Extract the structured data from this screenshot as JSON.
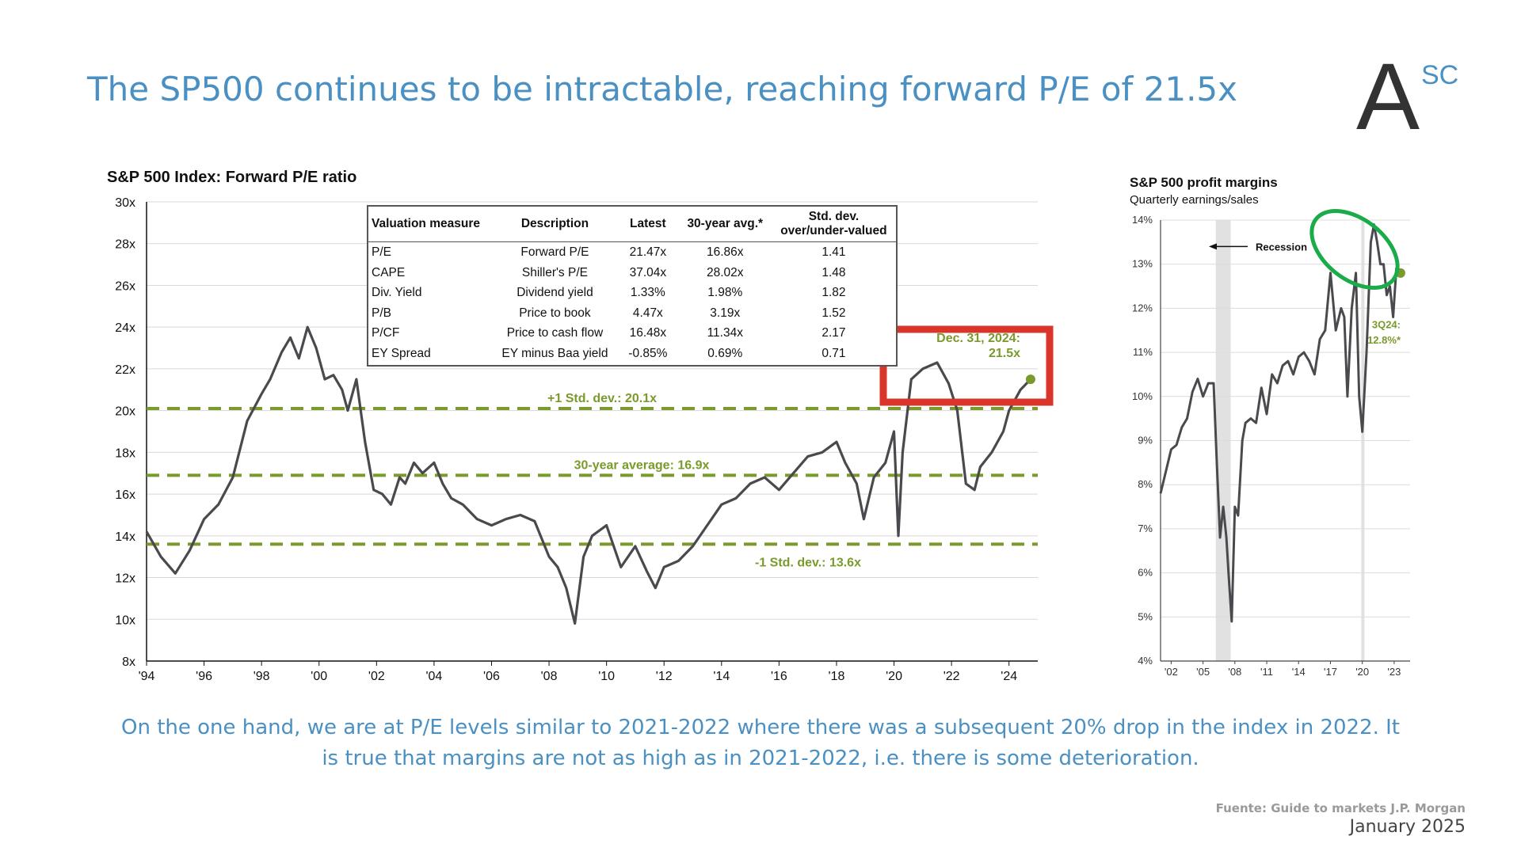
{
  "title": "The SP500 continues to be intractable, reaching  forward P/E of 21.5x",
  "logo": {
    "main": "A",
    "super": "SC"
  },
  "caption": "On the one hand, we are at P/E levels similar to 2021-2022 where there was a subsequent 20% drop in the index in 2022. It is true that margins are not as high as in 2021-2022, i.e. there is some deterioration.",
  "source": "Fuente: Guide to markets J.P. Morgan",
  "date": "January 2025",
  "colors": {
    "title_blue": "#4a90c2",
    "line_gray": "#4a4a4e",
    "ref_green": "#7a9a2c",
    "highlight_red": "#d9352a",
    "circle_green": "#1aab4a"
  },
  "table": {
    "headers": [
      "Valuation measure",
      "Description",
      "Latest",
      "30-year avg.*",
      "Std. dev. over/under-valued"
    ],
    "rows": [
      [
        "P/E",
        "Forward P/E",
        "21.47x",
        "16.86x",
        "1.41"
      ],
      [
        "CAPE",
        "Shiller's P/E",
        "37.04x",
        "28.02x",
        "1.48"
      ],
      [
        "Div. Yield",
        "Dividend yield",
        "1.33%",
        "1.98%",
        "1.82"
      ],
      [
        "P/B",
        "Price to book",
        "4.47x",
        "3.19x",
        "1.52"
      ],
      [
        "P/CF",
        "Price to cash flow",
        "16.48x",
        "11.34x",
        "2.17"
      ],
      [
        "EY Spread",
        "EY minus Baa yield",
        "-0.85%",
        "0.69%",
        "0.71"
      ]
    ]
  },
  "chart_data": [
    {
      "type": "line",
      "title": "S&P 500 Index: Forward P/E ratio",
      "xlim": [
        1994,
        2025
      ],
      "ylim": [
        8,
        30
      ],
      "x_ticks": [
        "'94",
        "'96",
        "'98",
        "'00",
        "'02",
        "'04",
        "'06",
        "'08",
        "'10",
        "'12",
        "'14",
        "'16",
        "'18",
        "'20",
        "'22",
        "'24"
      ],
      "y_ticks": [
        "8x",
        "10x",
        "12x",
        "14x",
        "16x",
        "18x",
        "20x",
        "22x",
        "24x",
        "26x",
        "28x",
        "30x"
      ],
      "grid": true,
      "reference_lines": [
        {
          "label": "+1 Std. dev.: 20.1x",
          "value": 20.1
        },
        {
          "label": "30-year average: 16.9x",
          "value": 16.9
        },
        {
          "label": "-1 Std. dev.: 13.6x",
          "value": 13.6
        }
      ],
      "annotation": {
        "label_line1": "Dec. 31, 2024:",
        "label_line2": "21.5x",
        "x": 2024.75,
        "y": 21.5
      },
      "series": [
        {
          "x": [
            1994.0,
            1994.5,
            1995.0,
            1995.5,
            1996.0,
            1996.5,
            1997.0,
            1997.5,
            1998.0,
            1998.3,
            1998.7,
            1999.0,
            1999.3,
            1999.6,
            1999.9,
            2000.2,
            2000.5,
            2000.8,
            2001.0,
            2001.3,
            2001.6,
            2001.9,
            2002.2,
            2002.5,
            2002.8,
            2003.0,
            2003.3,
            2003.6,
            2004.0,
            2004.3,
            2004.6,
            2005.0,
            2005.5,
            2006.0,
            2006.5,
            2007.0,
            2007.5,
            2008.0,
            2008.3,
            2008.6,
            2008.9,
            2009.2,
            2009.5,
            2010.0,
            2010.5,
            2011.0,
            2011.4,
            2011.7,
            2012.0,
            2012.5,
            2013.0,
            2013.5,
            2014.0,
            2014.5,
            2015.0,
            2015.5,
            2016.0,
            2016.5,
            2017.0,
            2017.5,
            2018.0,
            2018.3,
            2018.7,
            2018.95,
            2019.3,
            2019.7,
            2020.0,
            2020.15,
            2020.3,
            2020.6,
            2021.0,
            2021.5,
            2021.9,
            2022.2,
            2022.5,
            2022.8,
            2023.0,
            2023.4,
            2023.8,
            2024.0,
            2024.4,
            2024.75
          ],
          "values": [
            14.2,
            13.0,
            12.2,
            13.3,
            14.8,
            15.5,
            16.8,
            19.5,
            20.8,
            21.5,
            22.8,
            23.5,
            22.5,
            24.0,
            23.0,
            21.5,
            21.7,
            21.0,
            20.0,
            21.5,
            18.5,
            16.2,
            16.0,
            15.5,
            16.8,
            16.5,
            17.5,
            17.0,
            17.5,
            16.5,
            15.8,
            15.5,
            14.8,
            14.5,
            14.8,
            15.0,
            14.7,
            13.0,
            12.5,
            11.5,
            9.8,
            13.0,
            14.0,
            14.5,
            12.5,
            13.5,
            12.3,
            11.5,
            12.5,
            12.8,
            13.5,
            14.5,
            15.5,
            15.8,
            16.5,
            16.8,
            16.2,
            17.0,
            17.8,
            18.0,
            18.5,
            17.5,
            16.5,
            14.8,
            16.8,
            17.5,
            19.0,
            14.0,
            18.0,
            21.5,
            22.0,
            22.3,
            21.3,
            20.0,
            16.5,
            16.2,
            17.3,
            18.0,
            19.0,
            20.0,
            21.0,
            21.5
          ]
        }
      ]
    },
    {
      "type": "line",
      "title": "S&P 500 profit margins",
      "subtitle": "Quarterly earnings/sales",
      "xlim": [
        2001,
        2024.5
      ],
      "ylim": [
        4,
        14
      ],
      "x_ticks": [
        "'02",
        "'05",
        "'08",
        "'11",
        "'14",
        "'17",
        "'20",
        "'23"
      ],
      "y_ticks": [
        "4%",
        "5%",
        "6%",
        "7%",
        "8%",
        "9%",
        "10%",
        "11%",
        "12%",
        "13%",
        "14%"
      ],
      "grid": true,
      "recession_label": "Recession",
      "recessions": [
        [
          2006.2,
          2007.6
        ],
        [
          2019.9,
          2020.2
        ]
      ],
      "annotation": {
        "label_line1": "3Q24:",
        "label_line2": "12.8%*",
        "x": 2023.6,
        "y": 12.8
      },
      "series": [
        {
          "x": [
            2001.0,
            2001.5,
            2002.0,
            2002.5,
            2003.0,
            2003.5,
            2004.0,
            2004.5,
            2005.0,
            2005.5,
            2006.0,
            2006.3,
            2006.6,
            2006.9,
            2007.2,
            2007.4,
            2007.7,
            2008.0,
            2008.3,
            2008.7,
            2009.0,
            2009.5,
            2010.0,
            2010.5,
            2011.0,
            2011.5,
            2012.0,
            2012.5,
            2013.0,
            2013.5,
            2014.0,
            2014.5,
            2015.0,
            2015.5,
            2016.0,
            2016.5,
            2017.0,
            2017.5,
            2018.0,
            2018.3,
            2018.6,
            2019.0,
            2019.4,
            2019.7,
            2020.0,
            2020.4,
            2020.8,
            2021.1,
            2021.4,
            2021.7,
            2022.0,
            2022.3,
            2022.6,
            2022.9,
            2023.2,
            2023.6
          ],
          "values": [
            7.8,
            8.3,
            8.8,
            8.9,
            9.3,
            9.5,
            10.1,
            10.4,
            10.0,
            10.3,
            10.3,
            8.5,
            6.8,
            7.5,
            6.8,
            6.0,
            4.9,
            7.5,
            7.3,
            9.0,
            9.4,
            9.5,
            9.4,
            10.2,
            9.6,
            10.5,
            10.3,
            10.7,
            10.8,
            10.5,
            10.9,
            11.0,
            10.8,
            10.5,
            11.3,
            11.5,
            12.8,
            11.5,
            12.0,
            11.8,
            10.0,
            12.0,
            12.8,
            10.0,
            9.2,
            11.0,
            13.5,
            13.9,
            13.5,
            13.0,
            13.0,
            12.3,
            12.5,
            11.8,
            12.9,
            12.8
          ]
        }
      ]
    }
  ]
}
